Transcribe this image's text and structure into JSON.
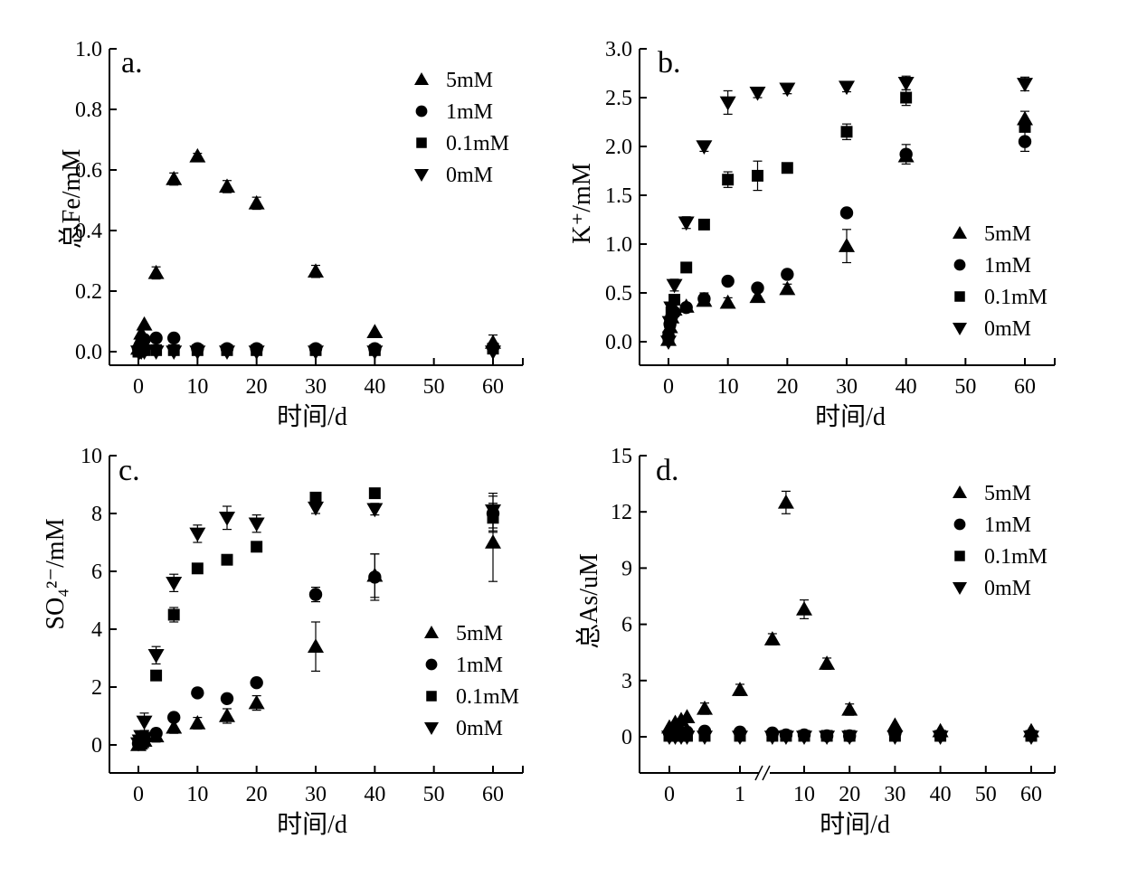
{
  "figure": {
    "description": "Four-panel scatter figure of leaching concentrations vs time for four treatments"
  },
  "chart_data": [
    {
      "type": "scatter",
      "panel_label": "a.",
      "title": "",
      "xlabel": "时间/d",
      "ylabel": "总Fe/mM",
      "xlim": [
        -5,
        65
      ],
      "ylim": [
        -0.05,
        1.0
      ],
      "xticks": [
        0,
        10,
        20,
        30,
        40,
        50,
        60
      ],
      "yticks": [
        0.0,
        0.2,
        0.4,
        0.6,
        0.8,
        1.0
      ],
      "ytick_labels": [
        "0.0",
        "0.2",
        "0.4",
        "0.6",
        "0.8",
        "1.0"
      ],
      "legend_position": "top-right",
      "grid": false,
      "series": [
        {
          "name": "5mM",
          "marker": "triangle-up",
          "x": [
            0,
            0.25,
            0.5,
            1,
            3,
            6,
            10,
            15,
            20,
            30,
            40,
            60
          ],
          "y": [
            0.01,
            0.03,
            0.06,
            0.09,
            0.26,
            0.57,
            0.645,
            0.545,
            0.49,
            0.265,
            0.065,
            0.03
          ],
          "err": [
            0,
            0,
            0,
            0,
            0.02,
            0.02,
            0.01,
            0.02,
            0.02,
            0.02,
            0,
            0.025
          ]
        },
        {
          "name": "1mM",
          "marker": "circle",
          "x": [
            0,
            0.25,
            0.5,
            1,
            3,
            6,
            10,
            15,
            20,
            30,
            40,
            60
          ],
          "y": [
            0.01,
            0.02,
            0.03,
            0.04,
            0.045,
            0.045,
            0.01,
            0.01,
            0.01,
            0.01,
            0.01,
            0.015
          ],
          "err": [
            0,
            0,
            0,
            0,
            0,
            0,
            0,
            0,
            0,
            0,
            0,
            0
          ]
        },
        {
          "name": "0.1mM",
          "marker": "square",
          "x": [
            0,
            0.25,
            0.5,
            1,
            3,
            6,
            10,
            15,
            20,
            30,
            40,
            60
          ],
          "y": [
            0.0,
            0.0,
            0.005,
            0.005,
            0.005,
            0.005,
            0.005,
            0.005,
            0.005,
            0.005,
            0.005,
            0.01
          ],
          "err": [
            0,
            0,
            0,
            0,
            0,
            0,
            0,
            0,
            0,
            0,
            0,
            0
          ]
        },
        {
          "name": "0mM",
          "marker": "triangle-down",
          "x": [
            0,
            0.25,
            0.5,
            1,
            3,
            6,
            10,
            15,
            20,
            30,
            40,
            60
          ],
          "y": [
            0.0,
            0.0,
            0.0,
            0.0,
            0.0,
            0.0,
            0.0,
            0.0,
            0.0,
            0.0,
            0.0,
            0.0
          ],
          "err": [
            0,
            0,
            0,
            0,
            0,
            0,
            0,
            0,
            0,
            0,
            0,
            0
          ]
        }
      ]
    },
    {
      "type": "scatter",
      "panel_label": "b.",
      "title": "",
      "xlabel": "时间/d",
      "ylabel": "K⁺/mM",
      "xlim": [
        -5,
        65
      ],
      "ylim": [
        -0.25,
        3.0
      ],
      "xticks": [
        0,
        10,
        20,
        30,
        40,
        50,
        60
      ],
      "yticks": [
        0.0,
        0.5,
        1.0,
        1.5,
        2.0,
        2.5,
        3.0
      ],
      "ytick_labels": [
        "0.0",
        "0.5",
        "1.0",
        "1.5",
        "2.0",
        "2.5",
        "3.0"
      ],
      "legend_position": "bottom-right",
      "grid": false,
      "series": [
        {
          "name": "5mM",
          "marker": "triangle-up",
          "x": [
            0,
            0.25,
            0.5,
            1,
            3,
            6,
            10,
            15,
            20,
            30,
            40,
            60
          ],
          "y": [
            0.02,
            0.15,
            0.25,
            0.33,
            0.36,
            0.42,
            0.4,
            0.46,
            0.54,
            0.98,
            1.9,
            2.28
          ],
          "err": [
            0,
            0,
            0,
            0,
            0.03,
            0.05,
            0.05,
            0.05,
            0.05,
            0.17,
            0.05,
            0.08
          ]
        },
        {
          "name": "1mM",
          "marker": "circle",
          "x": [
            0,
            0.25,
            0.5,
            1,
            3,
            6,
            10,
            15,
            20,
            30,
            40,
            60
          ],
          "y": [
            0.05,
            0.18,
            0.25,
            0.3,
            0.35,
            0.44,
            0.62,
            0.55,
            0.69,
            1.32,
            1.92,
            2.05
          ],
          "err": [
            0,
            0,
            0,
            0,
            0,
            0.06,
            0,
            0,
            0,
            0,
            0.1,
            0.1
          ]
        },
        {
          "name": "0.1mM",
          "marker": "square",
          "x": [
            0,
            0.25,
            0.5,
            1,
            3,
            6,
            10,
            15,
            20,
            30,
            40,
            60
          ],
          "y": [
            0.05,
            0.2,
            0.3,
            0.43,
            0.76,
            1.2,
            1.66,
            1.7,
            1.78,
            2.15,
            2.5,
            2.2
          ],
          "err": [
            0,
            0,
            0,
            0,
            0,
            0,
            0.08,
            0.15,
            0,
            0.08,
            0.08,
            0.05
          ]
        },
        {
          "name": "0mM",
          "marker": "triangle-down",
          "x": [
            0,
            0.25,
            0.5,
            1,
            3,
            6,
            10,
            15,
            20,
            30,
            40,
            60
          ],
          "y": [
            0.0,
            0.2,
            0.35,
            0.58,
            1.22,
            2.0,
            2.45,
            2.55,
            2.59,
            2.61,
            2.65,
            2.64
          ],
          "err": [
            0,
            0,
            0,
            0.06,
            0.06,
            0.05,
            0.12,
            0.05,
            0.05,
            0.05,
            0.07,
            0.07
          ]
        }
      ]
    },
    {
      "type": "scatter",
      "panel_label": "c.",
      "title": "",
      "xlabel": "时间/d",
      "ylabel": "SO₄²⁻/mM",
      "xlim": [
        -5,
        65
      ],
      "ylim": [
        -1,
        10
      ],
      "xticks": [
        0,
        10,
        20,
        30,
        40,
        50,
        60
      ],
      "yticks": [
        0,
        2,
        4,
        6,
        8,
        10
      ],
      "ytick_labels": [
        "0",
        "2",
        "4",
        "6",
        "8",
        "10"
      ],
      "legend_position": "bottom-right",
      "grid": false,
      "series": [
        {
          "name": "5mM",
          "marker": "triangle-up",
          "x": [
            0,
            0.25,
            0.5,
            1,
            3,
            6,
            10,
            15,
            20,
            30,
            40,
            60
          ],
          "y": [
            0.0,
            0.05,
            0.1,
            0.15,
            0.3,
            0.6,
            0.75,
            1.0,
            1.45,
            3.4,
            5.85,
            7.0
          ],
          "err": [
            0,
            0,
            0,
            0,
            0.2,
            0.2,
            0.2,
            0.25,
            0.25,
            0.85,
            0.75,
            1.35
          ]
        },
        {
          "name": "1mM",
          "marker": "circle",
          "x": [
            0,
            0.25,
            0.5,
            1,
            3,
            6,
            10,
            15,
            20,
            30,
            40,
            60
          ],
          "y": [
            0.05,
            0.1,
            0.15,
            0.2,
            0.4,
            0.95,
            1.8,
            1.6,
            2.15,
            5.2,
            5.8,
            8.0
          ],
          "err": [
            0,
            0,
            0,
            0,
            0,
            0,
            0,
            0,
            0,
            0.25,
            0.8,
            0.6
          ]
        },
        {
          "name": "0.1mM",
          "marker": "square",
          "x": [
            0,
            0.25,
            0.5,
            1,
            3,
            6,
            10,
            15,
            20,
            30,
            40,
            60
          ],
          "y": [
            0.05,
            0.1,
            0.15,
            0.25,
            2.4,
            4.5,
            6.1,
            6.4,
            6.85,
            8.55,
            8.7,
            7.85
          ],
          "err": [
            0,
            0,
            0,
            0,
            0,
            0.25,
            0,
            0,
            0,
            0,
            0,
            0.5
          ]
        },
        {
          "name": "0mM",
          "marker": "triangle-down",
          "x": [
            0,
            0.25,
            0.5,
            1,
            3,
            6,
            10,
            15,
            20,
            30,
            40,
            60
          ],
          "y": [
            0.05,
            0.15,
            0.3,
            0.8,
            3.1,
            5.6,
            7.3,
            7.85,
            7.65,
            8.2,
            8.15,
            8.1
          ],
          "err": [
            0,
            0,
            0,
            0.3,
            0.3,
            0.3,
            0.3,
            0.4,
            0.3,
            0.2,
            0.2,
            0.6
          ]
        }
      ]
    },
    {
      "type": "scatter",
      "panel_label": "d.",
      "title": "",
      "xlabel": "时间/d",
      "ylabel": "总As/uM",
      "ylim": [
        -3,
        15
      ],
      "x_axis_note": "broken axis: 0–1 d expanded, break mark between 1 and 10",
      "xticks": [
        0,
        1,
        10,
        20,
        30,
        40,
        50,
        60
      ],
      "xtick_labels": [
        "0",
        "1",
        "10",
        "20",
        "30",
        "40",
        "50",
        "60"
      ],
      "yticks": [
        0,
        3,
        6,
        9,
        12,
        15
      ],
      "ytick_labels": [
        "0",
        "3",
        "6",
        "9",
        "12",
        "15"
      ],
      "legend_position": "top-right",
      "grid": false,
      "series": [
        {
          "name": "5mM",
          "marker": "triangle-up",
          "x": [
            0,
            0.083,
            0.167,
            0.25,
            0.5,
            1,
            3,
            6,
            10,
            15,
            20,
            30,
            40,
            60
          ],
          "y": [
            0.5,
            0.75,
            0.9,
            1.05,
            1.5,
            2.5,
            5.2,
            12.5,
            6.8,
            3.9,
            1.45,
            0.6,
            0.3,
            0.3
          ],
          "err": [
            0,
            0,
            0,
            0,
            0.3,
            0.3,
            0.3,
            0.6,
            0.5,
            0.3,
            0.3,
            0,
            0,
            0
          ]
        },
        {
          "name": "1mM",
          "marker": "circle",
          "x": [
            0,
            0.083,
            0.167,
            0.25,
            0.5,
            1,
            3,
            6,
            10,
            15,
            20,
            30,
            40,
            60
          ],
          "y": [
            0.2,
            0.25,
            0.25,
            0.25,
            0.3,
            0.25,
            0.2,
            0.1,
            0.1,
            0.05,
            0.05,
            0.2,
            0.1,
            0.1
          ],
          "err": [
            0,
            0,
            0,
            0,
            0,
            0,
            0,
            0,
            0,
            0,
            0,
            0,
            0,
            0
          ]
        },
        {
          "name": "0.1mM",
          "marker": "square",
          "x": [
            0,
            0.083,
            0.167,
            0.25,
            0.5,
            1,
            3,
            6,
            10,
            15,
            20,
            30,
            40,
            60
          ],
          "y": [
            0.05,
            0.05,
            0.05,
            0.05,
            0.05,
            0.05,
            0.05,
            0.05,
            0.05,
            0.05,
            0.05,
            0.05,
            0.05,
            0.05
          ],
          "err": [
            0,
            0,
            0,
            0,
            0,
            0,
            0,
            0,
            0,
            0,
            0,
            0,
            0,
            0
          ]
        },
        {
          "name": "0mM",
          "marker": "triangle-down",
          "x": [
            0,
            0.083,
            0.167,
            0.25,
            0.5,
            1,
            3,
            6,
            10,
            15,
            20,
            30,
            40,
            60
          ],
          "y": [
            0.0,
            0.0,
            0.0,
            0.0,
            0.0,
            0.0,
            0.0,
            0.0,
            0.0,
            0.0,
            0.0,
            0.0,
            0.0,
            0.0
          ],
          "err": [
            0,
            0,
            0,
            0,
            0,
            0,
            0,
            0,
            0,
            0,
            0,
            0,
            0,
            0
          ]
        }
      ]
    }
  ]
}
